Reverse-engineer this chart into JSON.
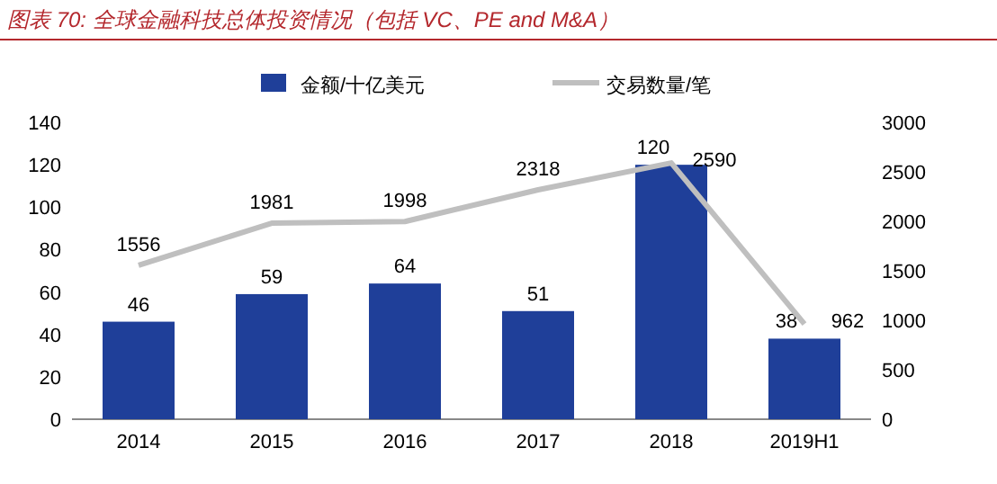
{
  "chart_data": {
    "type": "bar",
    "title": "图表 70:  全球金融科技总体投资情况（包括 VC、PE and M&A）",
    "categories": [
      "2014",
      "2015",
      "2016",
      "2017",
      "2018",
      "2019H1"
    ],
    "series": [
      {
        "name": "金额/十亿美元",
        "color": "#1f3f99",
        "values": [
          46,
          59,
          64,
          51,
          120,
          38
        ]
      },
      {
        "name": "交易数量/笔",
        "type": "line",
        "axis": "y2",
        "color": "#bfbfbf",
        "values": [
          1556,
          1981,
          1998,
          2318,
          2590,
          962
        ]
      }
    ],
    "ylim": [
      0,
      140
    ],
    "yticks": [
      0,
      20,
      40,
      60,
      80,
      100,
      120,
      140
    ],
    "y2lim": [
      0,
      3000
    ],
    "y2ticks": [
      0,
      500,
      1000,
      1500,
      2000,
      2500,
      3000
    ],
    "data_labels": true,
    "legend": "top"
  }
}
